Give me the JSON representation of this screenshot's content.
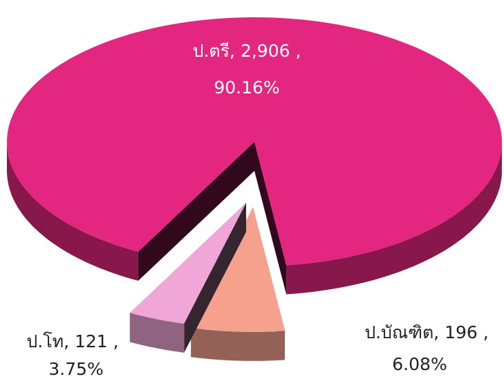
{
  "chart_data": {
    "type": "pie3d",
    "values": [
      2906,
      121,
      196
    ],
    "value_labels": [
      "ป.ตรี, 2,906 ,",
      "ป.โท, 121 ,",
      "ป.บัณฑิต, 196 ,"
    ],
    "percentages": [
      90.16,
      3.75,
      6.08
    ],
    "percentage_labels": [
      "90.16%",
      "3.75%",
      "6.08%"
    ],
    "colors": [
      "#e3267f",
      "#f0a6d6",
      "#f5a18d"
    ]
  }
}
